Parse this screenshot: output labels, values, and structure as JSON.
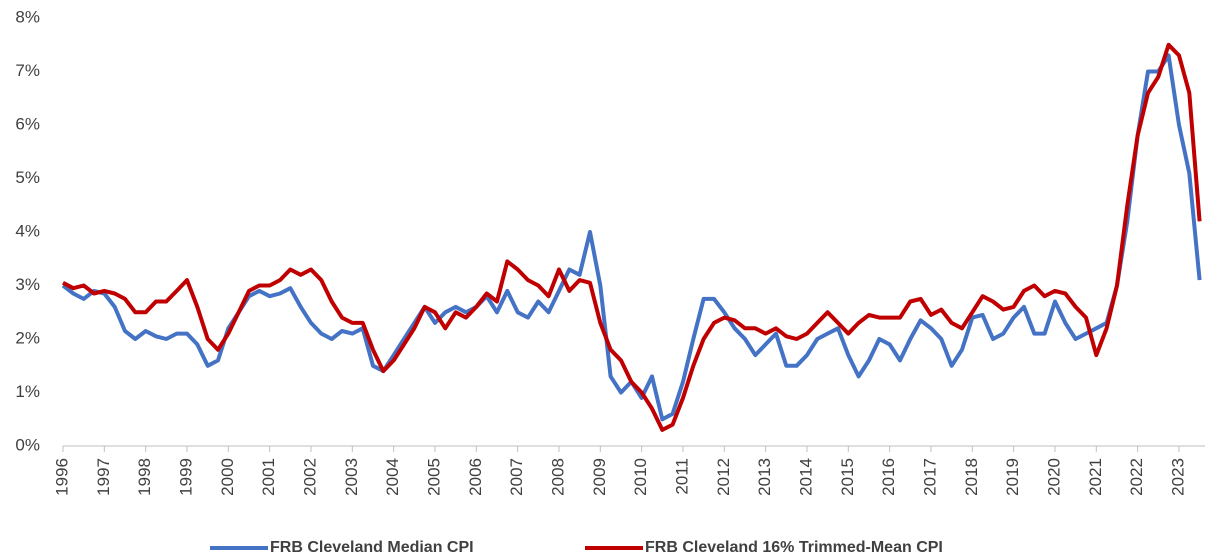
{
  "chart_data": {
    "type": "line",
    "x": [
      1996,
      1996.25,
      1996.5,
      1996.75,
      1997,
      1997.25,
      1997.5,
      1997.75,
      1998,
      1998.25,
      1998.5,
      1998.75,
      1999,
      1999.25,
      1999.5,
      1999.75,
      2000,
      2000.25,
      2000.5,
      2000.75,
      2001,
      2001.25,
      2001.5,
      2001.75,
      2002,
      2002.25,
      2002.5,
      2002.75,
      2003,
      2003.25,
      2003.5,
      2003.75,
      2004,
      2004.25,
      2004.5,
      2004.75,
      2005,
      2005.25,
      2005.5,
      2005.75,
      2006,
      2006.25,
      2006.5,
      2006.75,
      2007,
      2007.25,
      2007.5,
      2007.75,
      2008,
      2008.25,
      2008.5,
      2008.75,
      2009,
      2009.25,
      2009.5,
      2009.75,
      2010,
      2010.25,
      2010.5,
      2010.75,
      2011,
      2011.25,
      2011.5,
      2011.75,
      2012,
      2012.25,
      2012.5,
      2012.75,
      2013,
      2013.25,
      2013.5,
      2013.75,
      2014,
      2014.25,
      2014.5,
      2014.75,
      2015,
      2015.25,
      2015.5,
      2015.75,
      2016,
      2016.25,
      2016.5,
      2016.75,
      2017,
      2017.25,
      2017.5,
      2017.75,
      2018,
      2018.25,
      2018.5,
      2018.75,
      2019,
      2019.25,
      2019.5,
      2019.75,
      2020,
      2020.25,
      2020.5,
      2020.75,
      2021,
      2021.25,
      2021.5,
      2021.75,
      2022,
      2022.25,
      2022.5,
      2022.75,
      2023,
      2023.25,
      2023.5
    ],
    "series": [
      {
        "name": "FRB Cleveland Median CPI",
        "color": "#4472c4",
        "values": [
          3.0,
          2.85,
          2.75,
          2.9,
          2.85,
          2.6,
          2.15,
          2.0,
          2.15,
          2.05,
          2.0,
          2.1,
          2.1,
          1.9,
          1.5,
          1.6,
          2.2,
          2.5,
          2.8,
          2.9,
          2.8,
          2.85,
          2.95,
          2.6,
          2.3,
          2.1,
          2.0,
          2.15,
          2.1,
          2.2,
          1.5,
          1.4,
          1.7,
          2.0,
          2.3,
          2.6,
          2.3,
          2.5,
          2.6,
          2.5,
          2.6,
          2.8,
          2.5,
          2.9,
          2.5,
          2.4,
          2.7,
          2.5,
          2.9,
          3.3,
          3.2,
          4.0,
          3.0,
          1.3,
          1.0,
          1.2,
          0.9,
          1.3,
          0.5,
          0.6,
          1.2,
          2.0,
          2.75,
          2.75,
          2.5,
          2.2,
          2.0,
          1.7,
          1.9,
          2.1,
          1.5,
          1.5,
          1.7,
          2.0,
          2.1,
          2.2,
          1.7,
          1.3,
          1.6,
          2.0,
          1.9,
          1.6,
          2.0,
          2.35,
          2.2,
          2.0,
          1.5,
          1.8,
          2.4,
          2.45,
          2.0,
          2.1,
          2.4,
          2.6,
          2.1,
          2.1,
          2.7,
          2.3,
          2.0,
          2.1,
          2.2,
          2.3,
          3.0,
          4.2,
          5.8,
          7.0,
          7.0,
          7.3,
          6.0,
          5.1,
          3.1
        ]
      },
      {
        "name": "FRB Cleveland 16% Trimmed-Mean CPI",
        "color": "#c00000",
        "values": [
          3.05,
          2.95,
          3.0,
          2.85,
          2.9,
          2.85,
          2.75,
          2.5,
          2.5,
          2.7,
          2.7,
          2.9,
          3.1,
          2.6,
          2.0,
          1.8,
          2.1,
          2.5,
          2.9,
          3.0,
          3.0,
          3.1,
          3.3,
          3.2,
          3.3,
          3.1,
          2.7,
          2.4,
          2.3,
          2.3,
          1.8,
          1.4,
          1.6,
          1.9,
          2.2,
          2.6,
          2.5,
          2.2,
          2.5,
          2.4,
          2.6,
          2.85,
          2.7,
          3.45,
          3.3,
          3.1,
          3.0,
          2.8,
          3.3,
          2.9,
          3.1,
          3.05,
          2.3,
          1.8,
          1.6,
          1.2,
          1.0,
          0.7,
          0.3,
          0.4,
          0.9,
          1.5,
          2.0,
          2.3,
          2.4,
          2.35,
          2.2,
          2.2,
          2.1,
          2.2,
          2.05,
          2.0,
          2.1,
          2.3,
          2.5,
          2.3,
          2.1,
          2.3,
          2.45,
          2.4,
          2.4,
          2.4,
          2.7,
          2.75,
          2.45,
          2.55,
          2.3,
          2.2,
          2.5,
          2.8,
          2.7,
          2.55,
          2.6,
          2.9,
          3.0,
          2.8,
          2.9,
          2.85,
          2.6,
          2.4,
          1.7,
          2.2,
          3.0,
          4.5,
          5.8,
          6.6,
          6.9,
          7.5,
          7.3,
          6.6,
          4.2
        ]
      }
    ],
    "xlim": [
      1996,
      2023.63
    ],
    "xticks": [
      1996,
      1997,
      1998,
      1999,
      2000,
      2001,
      2002,
      2003,
      2004,
      2005,
      2006,
      2007,
      2008,
      2009,
      2010,
      2011,
      2012,
      2013,
      2014,
      2015,
      2016,
      2017,
      2018,
      2019,
      2020,
      2021,
      2022,
      2023
    ],
    "ylim": [
      0,
      8
    ],
    "yticks": [
      {
        "value": 0,
        "label": "0%"
      },
      {
        "value": 1,
        "label": "1%"
      },
      {
        "value": 2,
        "label": "2%"
      },
      {
        "value": 3,
        "label": "3%"
      },
      {
        "value": 4,
        "label": "4%"
      },
      {
        "value": 5,
        "label": "5%"
      },
      {
        "value": 6,
        "label": "6%"
      },
      {
        "value": 7,
        "label": "7%"
      },
      {
        "value": 8,
        "label": "8%"
      }
    ],
    "legend": "bottom"
  }
}
